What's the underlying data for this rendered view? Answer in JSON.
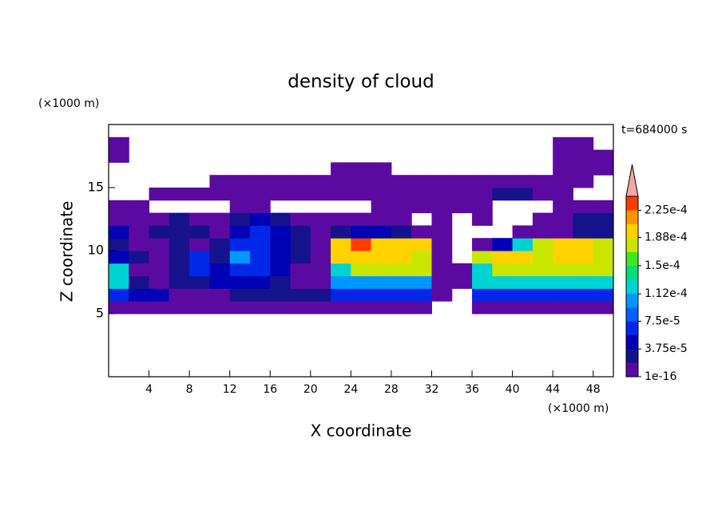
{
  "chart_data": {
    "type": "heatmap",
    "title": "density of cloud",
    "subtitle": "t=684000 s",
    "xlabel": "X coordinate",
    "ylabel": "Z coordinate",
    "xunit": "(×1000 m)",
    "yunit": "(×1000 m)",
    "xlim": [
      0,
      50
    ],
    "ylim": [
      0,
      20
    ],
    "xticks": [
      4,
      8,
      12,
      16,
      20,
      24,
      28,
      32,
      36,
      40,
      44,
      48
    ],
    "yticks": [
      5,
      10,
      15
    ],
    "x": [
      1,
      3,
      5,
      7,
      9,
      11,
      13,
      15,
      17,
      19,
      21,
      23,
      25,
      27,
      29,
      31,
      33,
      35,
      37,
      39,
      41,
      43,
      45,
      47,
      49
    ],
    "z": [
      0.5,
      1.5,
      2.5,
      3.5,
      4.5,
      5.5,
      6.5,
      7.5,
      8.5,
      9.5,
      10.5,
      11.5,
      12.5,
      13.5,
      14.5,
      15.5,
      16.5,
      17.5,
      18.5,
      19.5
    ],
    "values": [
      [
        null,
        null,
        null,
        null,
        null,
        null,
        null,
        null,
        null,
        null,
        null,
        null,
        null,
        null,
        null,
        null,
        null,
        null,
        null,
        null,
        null,
        null,
        null,
        null,
        null
      ],
      [
        null,
        null,
        null,
        null,
        null,
        null,
        null,
        null,
        null,
        null,
        null,
        null,
        null,
        null,
        null,
        null,
        null,
        null,
        null,
        null,
        null,
        null,
        null,
        null,
        null
      ],
      [
        null,
        null,
        null,
        null,
        null,
        null,
        null,
        null,
        null,
        null,
        null,
        null,
        null,
        null,
        null,
        null,
        null,
        null,
        null,
        null,
        null,
        null,
        null,
        null,
        null
      ],
      [
        null,
        null,
        null,
        null,
        null,
        null,
        null,
        null,
        null,
        null,
        null,
        null,
        null,
        null,
        null,
        null,
        null,
        null,
        null,
        null,
        null,
        null,
        null,
        null,
        null
      ],
      [
        null,
        null,
        null,
        null,
        null,
        null,
        null,
        null,
        null,
        null,
        null,
        null,
        null,
        null,
        null,
        null,
        null,
        null,
        null,
        null,
        null,
        null,
        null,
        null,
        null
      ],
      [
        1e-05,
        1e-05,
        1e-05,
        1e-05,
        1e-05,
        1e-05,
        1e-05,
        1e-05,
        1e-05,
        1e-05,
        1e-05,
        1e-05,
        1e-05,
        1e-05,
        1e-05,
        1e-05,
        null,
        null,
        1e-05,
        1e-05,
        1e-05,
        1e-05,
        1e-05,
        1e-05,
        1e-05
      ],
      [
        7e-05,
        5e-05,
        5e-05,
        1e-05,
        1e-05,
        1e-05,
        3e-05,
        3e-05,
        3e-05,
        3e-05,
        3e-05,
        7e-05,
        7e-05,
        7e-05,
        7e-05,
        7e-05,
        1e-05,
        null,
        7e-05,
        7e-05,
        7e-05,
        7e-05,
        7e-05,
        7e-05,
        7e-05
      ],
      [
        0.00013,
        3e-05,
        1e-05,
        3e-05,
        3e-05,
        5e-05,
        5e-05,
        5e-05,
        3e-05,
        1e-05,
        1e-05,
        0.0001,
        0.0001,
        0.0001,
        0.0001,
        0.0001,
        1e-05,
        1e-05,
        0.00013,
        0.00013,
        0.00013,
        0.00013,
        0.00013,
        0.00013,
        0.00013
      ],
      [
        0.00013,
        1e-05,
        1e-05,
        3e-05,
        7e-05,
        5e-05,
        7e-05,
        7e-05,
        5e-05,
        1e-05,
        1e-05,
        0.00013,
        0.00017,
        0.00017,
        0.00017,
        0.00017,
        1e-05,
        1e-05,
        0.00013,
        0.00017,
        0.00017,
        0.00017,
        0.00017,
        0.00017,
        0.00017
      ],
      [
        5e-05,
        3e-05,
        1e-05,
        3e-05,
        7e-05,
        3e-05,
        0.0001,
        7e-05,
        5e-05,
        3e-05,
        1e-05,
        0.0002,
        0.0002,
        0.0002,
        0.0002,
        0.00017,
        1e-05,
        null,
        0.00017,
        0.0002,
        0.0002,
        0.00017,
        0.0002,
        0.0002,
        0.00017
      ],
      [
        3e-05,
        1e-05,
        1e-05,
        3e-05,
        1e-05,
        3e-05,
        7e-05,
        7e-05,
        5e-05,
        3e-05,
        1e-05,
        0.0002,
        0.00023,
        0.0002,
        0.0002,
        0.0002,
        1e-05,
        null,
        1e-05,
        5e-05,
        0.00013,
        0.00017,
        0.0002,
        0.0002,
        0.00017
      ],
      [
        5e-05,
        1e-05,
        3e-05,
        3e-05,
        3e-05,
        1e-05,
        5e-05,
        7e-05,
        5e-05,
        3e-05,
        1e-05,
        3e-05,
        5e-05,
        5e-05,
        3e-05,
        1e-05,
        1e-05,
        null,
        null,
        null,
        1e-05,
        1e-05,
        1e-05,
        3e-05,
        3e-05
      ],
      [
        1e-05,
        1e-05,
        1e-05,
        3e-05,
        1e-05,
        1e-05,
        3e-05,
        5e-05,
        3e-05,
        1e-05,
        1e-05,
        1e-05,
        1e-05,
        1e-05,
        1e-05,
        null,
        1e-05,
        null,
        1e-05,
        null,
        null,
        1e-05,
        1e-05,
        3e-05,
        3e-05
      ],
      [
        1e-05,
        1e-05,
        null,
        null,
        null,
        null,
        1e-05,
        1e-05,
        null,
        null,
        null,
        null,
        null,
        1e-05,
        1e-05,
        1e-05,
        1e-05,
        1e-05,
        1e-05,
        null,
        null,
        null,
        1e-05,
        1e-05,
        1e-05
      ],
      [
        null,
        null,
        1e-05,
        1e-05,
        1e-05,
        1e-05,
        1e-05,
        1e-05,
        1e-05,
        1e-05,
        1e-05,
        1e-05,
        1e-05,
        1e-05,
        1e-05,
        1e-05,
        1e-05,
        1e-05,
        1e-05,
        3e-05,
        3e-05,
        1e-05,
        1e-05,
        null,
        null
      ],
      [
        null,
        null,
        null,
        null,
        null,
        1e-05,
        1e-05,
        1e-05,
        1e-05,
        1e-05,
        1e-05,
        1e-05,
        1e-05,
        1e-05,
        1e-05,
        1e-05,
        1e-05,
        1e-05,
        1e-05,
        1e-05,
        1e-05,
        1e-05,
        1e-05,
        1e-05,
        null
      ],
      [
        null,
        null,
        null,
        null,
        null,
        null,
        null,
        null,
        null,
        null,
        null,
        1e-05,
        1e-05,
        1e-05,
        null,
        null,
        null,
        null,
        null,
        null,
        null,
        null,
        1e-05,
        1e-05,
        1e-05
      ],
      [
        1e-05,
        null,
        null,
        null,
        null,
        null,
        null,
        null,
        null,
        null,
        null,
        null,
        null,
        null,
        null,
        null,
        null,
        null,
        null,
        null,
        null,
        null,
        1e-05,
        1e-05,
        1e-05
      ],
      [
        1e-05,
        null,
        null,
        null,
        null,
        null,
        null,
        null,
        null,
        null,
        null,
        null,
        null,
        null,
        null,
        null,
        null,
        null,
        null,
        null,
        null,
        null,
        1e-05,
        1e-05,
        null
      ],
      [
        null,
        null,
        null,
        null,
        null,
        null,
        null,
        null,
        null,
        null,
        null,
        null,
        null,
        null,
        null,
        null,
        null,
        null,
        null,
        null,
        null,
        null,
        null,
        null,
        null
      ]
    ],
    "clim": [
      1e-16,
      0.00024375
    ],
    "colors": [
      "#5a0aa0",
      "#16128c",
      "#0000b4",
      "#0028e6",
      "#0060ff",
      "#0096ff",
      "#00d2d2",
      "#00dc78",
      "#40e620",
      "#c8e600",
      "#ffd200",
      "#ff9600",
      "#ff3c00"
    ],
    "extend_color": "#f4a6a6",
    "cticks": [
      {
        "value": 1e-16,
        "label": "1e-16"
      },
      {
        "value": 3.75e-05,
        "label": "3.75e-5"
      },
      {
        "value": 7.5e-05,
        "label": "7.5e-5"
      },
      {
        "value": 0.000112,
        "label": "1.12e-4"
      },
      {
        "value": 0.00015,
        "label": "1.5e-4"
      },
      {
        "value": 0.000188,
        "label": "1.88e-4"
      },
      {
        "value": 0.000225,
        "label": "2.25e-4"
      }
    ]
  }
}
